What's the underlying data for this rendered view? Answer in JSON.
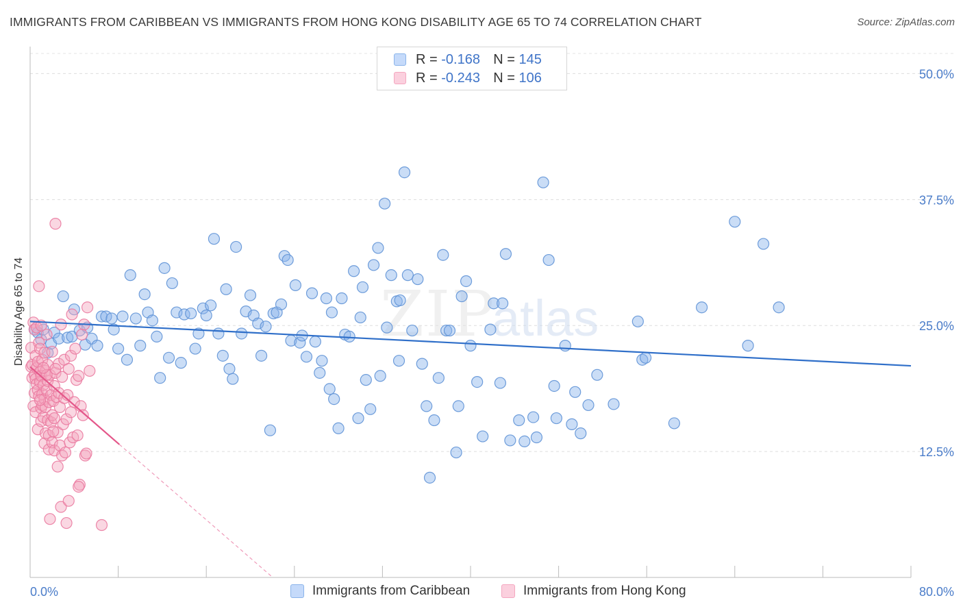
{
  "title": "IMMIGRANTS FROM CARIBBEAN VS IMMIGRANTS FROM HONG KONG DISABILITY AGE 65 TO 74 CORRELATION CHART",
  "source": "Source: ZipAtlas.com",
  "watermark": {
    "zip": "ZIP",
    "atlas": "atlas"
  },
  "legend": {
    "r_label": "R =",
    "n_label": "N =",
    "rows": [
      {
        "r": "-0.168",
        "n": "145"
      },
      {
        "r": "-0.243",
        "n": "106"
      }
    ]
  },
  "chart_data": {
    "type": "scatter",
    "title": "IMMIGRANTS FROM CARIBBEAN VS IMMIGRANTS FROM HONG KONG DISABILITY AGE 65 TO 74 CORRELATION CHART",
    "xlabel": "",
    "ylabel": "Disability Age 65 to 74",
    "xlim": [
      0,
      80
    ],
    "ylim": [
      0,
      52
    ],
    "x_tick_labels": {
      "min": "0.0%",
      "max": "80.0%"
    },
    "y_ticks": [
      {
        "value": 12.5,
        "label": "12.5%"
      },
      {
        "value": 25.0,
        "label": "25.0%"
      },
      {
        "value": 37.5,
        "label": "37.5%"
      },
      {
        "value": 50.0,
        "label": "50.0%"
      }
    ],
    "grid": true,
    "legend_position": "top-center",
    "series": [
      {
        "name": "Immigrants from Caribbean",
        "color": "#8ab4ea",
        "stroke": "#5f92d6",
        "line_color": "#2f6fc9",
        "trend": {
          "x0": 0,
          "y0": 25.4,
          "x1": 80,
          "y1": 21.0
        },
        "points": [
          [
            0.4,
            24.6
          ],
          [
            0.7,
            24.3
          ],
          [
            1.0,
            23.6
          ],
          [
            1.2,
            24.6
          ],
          [
            1.6,
            22.3
          ],
          [
            1.9,
            23.2
          ],
          [
            2.2,
            24.3
          ],
          [
            2.6,
            23.7
          ],
          [
            3.0,
            27.9
          ],
          [
            3.4,
            23.8
          ],
          [
            3.8,
            23.9
          ],
          [
            4.0,
            26.6
          ],
          [
            4.5,
            24.5
          ],
          [
            5.0,
            23.1
          ],
          [
            5.2,
            24.8
          ],
          [
            5.6,
            23.7
          ],
          [
            6.1,
            23.0
          ],
          [
            6.5,
            25.9
          ],
          [
            6.9,
            25.9
          ],
          [
            7.4,
            25.7
          ],
          [
            7.6,
            24.6
          ],
          [
            8.0,
            22.7
          ],
          [
            8.4,
            25.9
          ],
          [
            8.8,
            21.6
          ],
          [
            9.1,
            30.0
          ],
          [
            9.6,
            25.7
          ],
          [
            10.0,
            23.0
          ],
          [
            10.4,
            28.1
          ],
          [
            10.7,
            26.3
          ],
          [
            11.1,
            25.5
          ],
          [
            11.5,
            23.9
          ],
          [
            11.8,
            19.8
          ],
          [
            12.2,
            30.7
          ],
          [
            12.6,
            21.8
          ],
          [
            12.9,
            29.2
          ],
          [
            13.3,
            26.3
          ],
          [
            13.7,
            21.3
          ],
          [
            14.0,
            26.1
          ],
          [
            14.6,
            26.2
          ],
          [
            15.0,
            22.7
          ],
          [
            15.3,
            24.2
          ],
          [
            15.7,
            26.7
          ],
          [
            16.0,
            26.0
          ],
          [
            16.4,
            27.0
          ],
          [
            16.7,
            33.6
          ],
          [
            17.1,
            24.2
          ],
          [
            17.5,
            22.0
          ],
          [
            17.8,
            28.6
          ],
          [
            18.1,
            20.7
          ],
          [
            18.4,
            19.7
          ],
          [
            18.7,
            32.8
          ],
          [
            19.2,
            24.2
          ],
          [
            19.6,
            26.4
          ],
          [
            20.0,
            28.0
          ],
          [
            20.3,
            26.0
          ],
          [
            20.7,
            25.2
          ],
          [
            21.0,
            22.0
          ],
          [
            21.4,
            24.9
          ],
          [
            21.8,
            14.6
          ],
          [
            22.1,
            26.2
          ],
          [
            22.4,
            26.3
          ],
          [
            22.8,
            27.1
          ],
          [
            23.1,
            31.9
          ],
          [
            23.4,
            31.5
          ],
          [
            23.7,
            23.5
          ],
          [
            24.1,
            29.0
          ],
          [
            24.5,
            23.3
          ],
          [
            24.7,
            24.0
          ],
          [
            25.1,
            21.9
          ],
          [
            25.6,
            28.2
          ],
          [
            25.9,
            23.4
          ],
          [
            26.3,
            20.3
          ],
          [
            26.5,
            21.5
          ],
          [
            26.9,
            27.7
          ],
          [
            27.2,
            18.7
          ],
          [
            27.4,
            26.3
          ],
          [
            27.6,
            17.7
          ],
          [
            28.0,
            14.8
          ],
          [
            28.3,
            27.7
          ],
          [
            28.6,
            24.1
          ],
          [
            29.0,
            23.9
          ],
          [
            29.4,
            30.4
          ],
          [
            29.8,
            15.8
          ],
          [
            30.0,
            25.8
          ],
          [
            30.2,
            28.8
          ],
          [
            30.5,
            19.6
          ],
          [
            30.9,
            16.7
          ],
          [
            31.2,
            31.0
          ],
          [
            31.6,
            32.7
          ],
          [
            31.8,
            20.0
          ],
          [
            32.2,
            37.1
          ],
          [
            32.4,
            24.8
          ],
          [
            32.8,
            30.0
          ],
          [
            33.3,
            27.4
          ],
          [
            33.6,
            27.5
          ],
          [
            34.0,
            40.2
          ],
          [
            34.3,
            30.0
          ],
          [
            34.7,
            24.5
          ],
          [
            35.2,
            29.6
          ],
          [
            35.6,
            21.2
          ],
          [
            36.0,
            17.0
          ],
          [
            36.3,
            9.9
          ],
          [
            36.7,
            15.6
          ],
          [
            37.1,
            19.8
          ],
          [
            37.5,
            32.0
          ],
          [
            37.8,
            24.5
          ],
          [
            38.1,
            24.5
          ],
          [
            38.7,
            12.4
          ],
          [
            38.9,
            17.0
          ],
          [
            39.2,
            27.9
          ],
          [
            39.6,
            29.4
          ],
          [
            40.0,
            23.0
          ],
          [
            40.6,
            19.4
          ],
          [
            41.1,
            14.0
          ],
          [
            41.8,
            24.6
          ],
          [
            42.1,
            27.2
          ],
          [
            42.7,
            19.3
          ],
          [
            42.9,
            27.2
          ],
          [
            43.2,
            32.1
          ],
          [
            43.6,
            13.6
          ],
          [
            44.4,
            15.6
          ],
          [
            44.9,
            13.5
          ],
          [
            45.7,
            15.9
          ],
          [
            46.0,
            13.9
          ],
          [
            46.6,
            39.2
          ],
          [
            47.1,
            31.5
          ],
          [
            47.6,
            19.0
          ],
          [
            47.8,
            15.8
          ],
          [
            48.6,
            23.0
          ],
          [
            49.2,
            15.2
          ],
          [
            49.5,
            18.4
          ],
          [
            50.0,
            14.3
          ],
          [
            50.7,
            17.1
          ],
          [
            51.5,
            20.1
          ],
          [
            53.0,
            17.2
          ],
          [
            55.2,
            25.4
          ],
          [
            55.6,
            21.6
          ],
          [
            55.9,
            21.8
          ],
          [
            58.5,
            15.3
          ],
          [
            61.0,
            26.8
          ],
          [
            64.0,
            35.3
          ],
          [
            65.2,
            23.0
          ],
          [
            66.6,
            33.1
          ],
          [
            68.0,
            26.8
          ],
          [
            33.5,
            21.5
          ]
        ]
      },
      {
        "name": "Immigrants from Hong Kong",
        "color": "#f4a6bf",
        "stroke": "#ea7aa0",
        "line_color": "#e4578a",
        "trend": {
          "x0": 0,
          "y0": 20.9,
          "x1": 8.1,
          "y1": 13.2
        },
        "trend_ext": {
          "x0": 8.1,
          "y0": 13.2,
          "x1": 25.2,
          "y1": -3.0
        },
        "points": [
          [
            0.1,
            20.9
          ],
          [
            0.1,
            22.8
          ],
          [
            0.2,
            19.8
          ],
          [
            0.2,
            21.1
          ],
          [
            0.3,
            25.3
          ],
          [
            0.3,
            17.0
          ],
          [
            0.4,
            20.1
          ],
          [
            0.4,
            24.6
          ],
          [
            0.4,
            18.3
          ],
          [
            0.5,
            16.4
          ],
          [
            0.5,
            19.7
          ],
          [
            0.5,
            22.0
          ],
          [
            0.6,
            19.2
          ],
          [
            0.6,
            20.8
          ],
          [
            0.7,
            18.6
          ],
          [
            0.7,
            14.7
          ],
          [
            0.7,
            21.4
          ],
          [
            0.8,
            28.9
          ],
          [
            0.8,
            23.3
          ],
          [
            0.8,
            18.0
          ],
          [
            0.9,
            20.4
          ],
          [
            0.9,
            19.4
          ],
          [
            0.9,
            22.7
          ],
          [
            1.0,
            16.8
          ],
          [
            1.0,
            15.5
          ],
          [
            1.0,
            20.0
          ],
          [
            1.1,
            18.2
          ],
          [
            1.1,
            17.1
          ],
          [
            1.1,
            21.6
          ],
          [
            1.2,
            15.9
          ],
          [
            1.2,
            19.1
          ],
          [
            1.3,
            17.7
          ],
          [
            1.3,
            22.3
          ],
          [
            1.3,
            13.3
          ],
          [
            1.4,
            20.5
          ],
          [
            1.4,
            16.9
          ],
          [
            1.4,
            14.3
          ],
          [
            1.5,
            18.6
          ],
          [
            1.5,
            24.1
          ],
          [
            1.6,
            15.6
          ],
          [
            1.6,
            19.5
          ],
          [
            1.6,
            21.1
          ],
          [
            1.7,
            12.7
          ],
          [
            1.7,
            17.4
          ],
          [
            1.7,
            14.1
          ],
          [
            1.8,
            5.8
          ],
          [
            1.8,
            20.1
          ],
          [
            1.9,
            15.4
          ],
          [
            1.9,
            18.1
          ],
          [
            2.0,
            16.1
          ],
          [
            2.0,
            13.4
          ],
          [
            2.0,
            22.4
          ],
          [
            2.1,
            17.5
          ],
          [
            2.2,
            12.6
          ],
          [
            2.2,
            19.0
          ],
          [
            2.2,
            15.8
          ],
          [
            2.3,
            35.1
          ],
          [
            2.3,
            20.3
          ],
          [
            2.4,
            17.9
          ],
          [
            2.5,
            14.4
          ],
          [
            2.5,
            11.0
          ],
          [
            2.6,
            21.2
          ],
          [
            2.6,
            18.3
          ],
          [
            2.7,
            13.1
          ],
          [
            2.7,
            16.9
          ],
          [
            2.8,
            7.0
          ],
          [
            2.8,
            25.1
          ],
          [
            2.9,
            12.1
          ],
          [
            2.9,
            19.9
          ],
          [
            3.0,
            15.2
          ],
          [
            3.1,
            21.6
          ],
          [
            3.1,
            17.8
          ],
          [
            3.2,
            12.4
          ],
          [
            3.3,
            15.7
          ],
          [
            3.3,
            5.4
          ],
          [
            3.4,
            18.1
          ],
          [
            3.5,
            20.7
          ],
          [
            3.5,
            7.6
          ],
          [
            3.6,
            13.4
          ],
          [
            3.7,
            22.0
          ],
          [
            3.7,
            16.4
          ],
          [
            3.8,
            26.1
          ],
          [
            3.9,
            13.9
          ],
          [
            4.0,
            17.4
          ],
          [
            4.1,
            22.7
          ],
          [
            4.2,
            19.6
          ],
          [
            4.3,
            14.1
          ],
          [
            4.4,
            20.0
          ],
          [
            4.5,
            9.2
          ],
          [
            4.6,
            17.0
          ],
          [
            4.7,
            24.1
          ],
          [
            4.8,
            16.1
          ],
          [
            4.9,
            25.1
          ],
          [
            5.0,
            12.1
          ],
          [
            5.1,
            12.3
          ],
          [
            5.2,
            26.8
          ],
          [
            5.4,
            20.5
          ],
          [
            6.5,
            5.2
          ],
          [
            2.3,
            20.7
          ],
          [
            1.5,
            20.1
          ],
          [
            0.6,
            24.8
          ],
          [
            1.2,
            20.8
          ],
          [
            0.9,
            17.6
          ],
          [
            2.1,
            14.5
          ],
          [
            1.0,
            25.0
          ],
          [
            4.4,
            9.0
          ]
        ]
      }
    ]
  }
}
